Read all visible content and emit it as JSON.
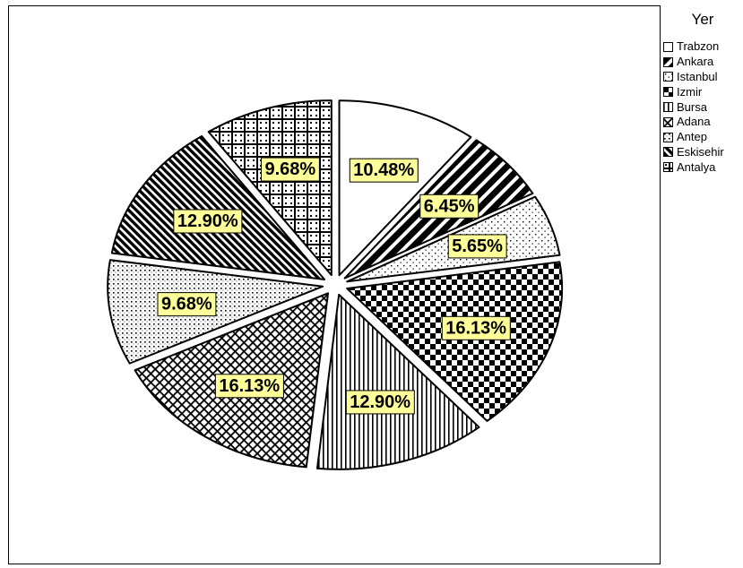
{
  "chart_data": {
    "type": "pie",
    "title": "",
    "legend_title": "Yer",
    "legend_position": "right",
    "label_color": "#ffff99",
    "categories": [
      "Trabzon",
      "Ankara",
      "Istanbul",
      "Izmir",
      "Bursa",
      "Adana",
      "Antep",
      "Eskisehir",
      "Antalya"
    ],
    "values": [
      10.48,
      6.45,
      5.65,
      16.13,
      12.9,
      16.13,
      9.68,
      12.9,
      9.68
    ],
    "labels": [
      "10.48%",
      "6.45%",
      "5.65%",
      "16.13%",
      "12.90%",
      "16.13%",
      "9.68%",
      "12.90%",
      "9.68%"
    ],
    "patterns": [
      "blank",
      "diagonal-thick",
      "dots-sparse",
      "checker-large",
      "vertical-lines",
      "crosshatch",
      "dots-dense",
      "diagonal-lines",
      "plus-grid"
    ],
    "exploded": true
  }
}
